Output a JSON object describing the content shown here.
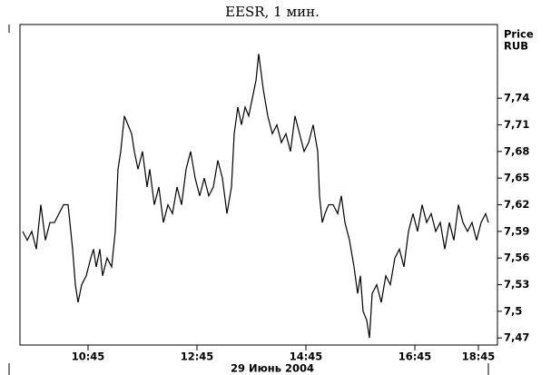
{
  "chart_data": {
    "type": "line",
    "title": "EESR, 1 мин.",
    "ylabel": [
      "Price",
      "RUB"
    ],
    "xlabel": "29 Июнь 2004",
    "x": [
      3,
      8,
      13,
      18,
      23,
      28,
      33,
      38,
      43,
      48,
      53,
      58,
      61,
      64,
      68,
      73,
      78,
      81,
      84,
      88,
      91,
      96,
      101,
      105,
      108,
      111,
      115,
      119,
      123,
      126,
      130,
      135,
      140,
      143,
      148,
      153,
      158,
      163,
      168,
      173,
      178,
      183,
      188,
      193,
      198,
      203,
      208,
      213,
      218,
      223,
      228,
      233,
      236,
      240,
      244,
      248,
      252,
      256,
      260,
      263,
      268,
      273,
      278,
      283,
      288,
      293,
      298,
      303,
      308,
      313,
      318,
      323,
      328,
      330,
      333,
      336,
      340,
      345,
      350,
      354,
      358,
      363,
      368,
      372,
      375,
      378,
      382,
      385,
      388,
      393,
      398,
      403,
      408,
      413,
      418,
      423,
      428,
      433,
      438,
      443,
      448,
      453,
      458,
      463,
      468,
      473,
      478,
      483,
      488,
      493,
      498,
      503,
      508,
      513,
      516
    ],
    "values": [
      7.59,
      7.58,
      7.59,
      7.57,
      7.62,
      7.58,
      7.6,
      7.6,
      7.61,
      7.62,
      7.62,
      7.57,
      7.53,
      7.51,
      7.53,
      7.54,
      7.56,
      7.57,
      7.55,
      7.57,
      7.54,
      7.56,
      7.55,
      7.59,
      7.66,
      7.68,
      7.72,
      7.71,
      7.7,
      7.68,
      7.66,
      7.68,
      7.64,
      7.66,
      7.62,
      7.64,
      7.6,
      7.62,
      7.61,
      7.64,
      7.62,
      7.66,
      7.68,
      7.65,
      7.63,
      7.65,
      7.63,
      7.64,
      7.67,
      7.65,
      7.61,
      7.64,
      7.7,
      7.73,
      7.71,
      7.73,
      7.72,
      7.74,
      7.76,
      7.79,
      7.75,
      7.72,
      7.7,
      7.71,
      7.69,
      7.7,
      7.68,
      7.72,
      7.7,
      7.68,
      7.69,
      7.71,
      7.68,
      7.63,
      7.6,
      7.61,
      7.62,
      7.62,
      7.61,
      7.63,
      7.6,
      7.58,
      7.55,
      7.52,
      7.54,
      7.5,
      7.49,
      7.47,
      7.52,
      7.53,
      7.51,
      7.54,
      7.53,
      7.56,
      7.57,
      7.55,
      7.59,
      7.61,
      7.59,
      7.62,
      7.6,
      7.61,
      7.59,
      7.6,
      7.57,
      7.6,
      7.58,
      7.62,
      7.6,
      7.59,
      7.6,
      7.58,
      7.6,
      7.61,
      7.6
    ],
    "color": "#000000",
    "xlim": [
      0,
      526
    ],
    "xticks": [
      {
        "value": 75,
        "label": "10:45"
      },
      {
        "value": 195,
        "label": "12:45"
      },
      {
        "value": 315,
        "label": "14:45"
      },
      {
        "value": 435,
        "label": "16:45"
      },
      {
        "value": 505,
        "label": "18:45"
      }
    ],
    "ylim": [
      7.462,
      7.823
    ],
    "yticks": [
      {
        "value": 7.47,
        "label": "7,47"
      },
      {
        "value": 7.5,
        "label": "7,5"
      },
      {
        "value": 7.53,
        "label": "7,53"
      },
      {
        "value": 7.56,
        "label": "7,56"
      },
      {
        "value": 7.59,
        "label": "7,59"
      },
      {
        "value": 7.62,
        "label": "7,62"
      },
      {
        "value": 7.65,
        "label": "7,65"
      },
      {
        "value": 7.68,
        "label": "7,68"
      },
      {
        "value": 7.71,
        "label": "7,71"
      },
      {
        "value": 7.74,
        "label": "7,74"
      }
    ],
    "grid": false
  }
}
